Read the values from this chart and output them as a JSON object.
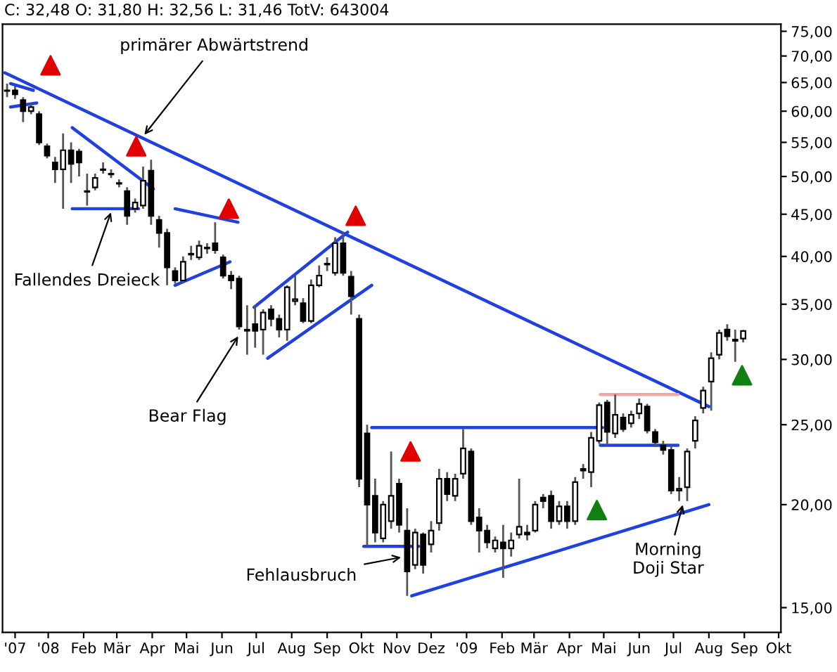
{
  "chart_data": {
    "type": "candlestick",
    "title": "C: 32,48 O: 31,80 H: 32,56 L: 31,46 TotV: 643004",
    "log": true,
    "x": [
      "2007-11-26",
      "2007-12-03",
      "2007-12-10",
      "2007-12-17",
      "2007-12-24",
      "2007-12-31",
      "2008-01-07",
      "2008-01-14",
      "2008-01-21",
      "2008-01-28",
      "2008-02-04",
      "2008-02-11",
      "2008-02-18",
      "2008-02-25",
      "2008-03-03",
      "2008-03-10",
      "2008-03-17",
      "2008-03-24",
      "2008-03-31",
      "2008-04-07",
      "2008-04-14",
      "2008-04-21",
      "2008-04-28",
      "2008-05-05",
      "2008-05-12",
      "2008-05-19",
      "2008-05-26",
      "2008-06-02",
      "2008-06-09",
      "2008-06-16",
      "2008-06-23",
      "2008-06-30",
      "2008-07-07",
      "2008-07-14",
      "2008-07-21",
      "2008-07-28",
      "2008-08-04",
      "2008-08-11",
      "2008-08-18",
      "2008-08-25",
      "2008-09-01",
      "2008-09-08",
      "2008-09-15",
      "2008-09-22",
      "2008-09-29",
      "2008-10-06",
      "2008-10-13",
      "2008-10-20",
      "2008-10-27",
      "2008-11-03",
      "2008-11-10",
      "2008-11-17",
      "2008-11-24",
      "2008-12-01",
      "2008-12-08",
      "2008-12-15",
      "2008-12-22",
      "2008-12-29",
      "2009-01-05",
      "2009-01-12",
      "2009-01-19",
      "2009-01-26",
      "2009-02-02",
      "2009-02-09",
      "2009-02-16",
      "2009-02-23",
      "2009-03-02",
      "2009-03-09",
      "2009-03-16",
      "2009-03-23",
      "2009-03-30",
      "2009-04-06",
      "2009-04-13",
      "2009-04-20",
      "2009-04-27",
      "2009-05-04",
      "2009-05-11",
      "2009-05-18",
      "2009-05-25",
      "2009-06-01",
      "2009-06-08",
      "2009-06-15",
      "2009-06-22",
      "2009-06-29",
      "2009-07-06",
      "2009-07-13",
      "2009-07-20",
      "2009-07-27",
      "2009-08-03",
      "2009-08-10",
      "2009-08-17",
      "2009-08-24",
      "2009-08-31"
    ],
    "ohlc": [
      [
        63.6,
        64.8,
        62.4,
        63.5
      ],
      [
        63.6,
        64.3,
        62.1,
        62.9
      ],
      [
        61.9,
        62.4,
        58.2,
        60.0
      ],
      [
        60.0,
        61.2,
        59.5,
        60.7
      ],
      [
        59.5,
        60.0,
        54.6,
        55.0
      ],
      [
        54.4,
        54.8,
        52.6,
        53.0
      ],
      [
        52.0,
        52.8,
        49.1,
        51.0
      ],
      [
        51.0,
        56.4,
        45.7,
        53.8
      ],
      [
        53.8,
        55.0,
        49.1,
        51.8
      ],
      [
        53.6,
        54.0,
        50.0,
        52.0
      ],
      [
        48.0,
        50.4,
        46.1,
        47.9
      ],
      [
        48.5,
        50.4,
        48.1,
        49.8
      ],
      [
        51.0,
        52.0,
        50.4,
        50.9
      ],
      [
        50.4,
        51.0,
        49.8,
        50.3
      ],
      [
        49.1,
        49.6,
        48.5,
        49.0
      ],
      [
        48.0,
        48.5,
        43.7,
        44.8
      ],
      [
        45.7,
        47.0,
        45.2,
        46.5
      ],
      [
        46.1,
        51.4,
        45.7,
        49.4
      ],
      [
        50.8,
        52.4,
        43.7,
        44.8
      ],
      [
        44.3,
        44.8,
        41.0,
        42.7
      ],
      [
        42.7,
        43.2,
        36.9,
        38.8
      ],
      [
        38.4,
        38.8,
        37.1,
        37.4
      ],
      [
        37.4,
        40.0,
        37.1,
        39.4
      ],
      [
        40.3,
        41.2,
        39.6,
        40.2
      ],
      [
        39.9,
        41.8,
        39.6,
        41.2
      ],
      [
        41.0,
        41.5,
        40.3,
        40.9
      ],
      [
        41.5,
        44.0,
        40.3,
        40.7
      ],
      [
        39.9,
        40.2,
        37.6,
        37.9
      ],
      [
        37.9,
        38.4,
        36.5,
        37.4
      ],
      [
        37.6,
        37.9,
        32.6,
        32.9
      ],
      [
        32.6,
        34.9,
        30.4,
        32.5
      ],
      [
        33.1,
        34.9,
        31.0,
        32.5
      ],
      [
        32.6,
        34.5,
        30.4,
        34.2
      ],
      [
        34.5,
        34.9,
        32.9,
        33.6
      ],
      [
        33.6,
        34.0,
        31.9,
        32.6
      ],
      [
        32.6,
        36.9,
        31.6,
        36.7
      ],
      [
        35.3,
        37.9,
        34.9,
        35.5
      ],
      [
        35.1,
        35.6,
        33.2,
        33.4
      ],
      [
        33.4,
        37.5,
        33.2,
        36.9
      ],
      [
        36.9,
        39.0,
        36.7,
        37.9
      ],
      [
        39.1,
        39.9,
        38.4,
        39.2
      ],
      [
        38.2,
        42.2,
        37.9,
        41.5
      ],
      [
        41.5,
        42.8,
        37.9,
        38.2
      ],
      [
        37.8,
        38.4,
        34.0,
        35.8
      ],
      [
        33.6,
        34.0,
        21.0,
        21.5
      ],
      [
        24.4,
        25.0,
        17.8,
        20.0
      ],
      [
        20.5,
        21.5,
        18.0,
        18.5
      ],
      [
        18.2,
        20.2,
        18.0,
        20.0
      ],
      [
        19.1,
        23.2,
        18.7,
        20.5
      ],
      [
        21.2,
        21.5,
        18.5,
        18.9
      ],
      [
        18.6,
        19.8,
        15.5,
        16.6
      ],
      [
        16.9,
        18.7,
        16.7,
        18.5
      ],
      [
        18.4,
        18.5,
        16.5,
        16.9
      ],
      [
        17.9,
        19.1,
        17.5,
        18.6
      ],
      [
        19.0,
        22.1,
        18.6,
        21.5
      ],
      [
        21.5,
        21.9,
        20.2,
        20.6
      ],
      [
        20.5,
        21.8,
        20.2,
        21.5
      ],
      [
        21.8,
        24.7,
        21.5,
        23.4
      ],
      [
        23.2,
        23.4,
        18.9,
        19.1
      ],
      [
        19.3,
        19.8,
        17.5,
        18.6
      ],
      [
        18.6,
        18.9,
        17.7,
        18.0
      ],
      [
        17.7,
        18.3,
        17.5,
        18.1
      ],
      [
        18.0,
        18.9,
        16.3,
        17.7
      ],
      [
        17.7,
        18.5,
        17.3,
        18.1
      ],
      [
        18.4,
        21.5,
        18.2,
        18.8
      ],
      [
        18.5,
        18.9,
        18.1,
        18.4
      ],
      [
        18.6,
        20.2,
        18.5,
        20.0
      ],
      [
        20.4,
        20.6,
        19.8,
        20.2
      ],
      [
        20.5,
        20.8,
        18.7,
        19.1
      ],
      [
        19.1,
        20.2,
        18.9,
        19.9
      ],
      [
        19.9,
        20.2,
        18.7,
        19.1
      ],
      [
        19.1,
        21.6,
        18.9,
        21.3
      ],
      [
        22.0,
        22.4,
        21.5,
        22.1
      ],
      [
        21.9,
        24.5,
        21.0,
        24.1
      ],
      [
        23.9,
        26.6,
        23.7,
        26.4
      ],
      [
        26.6,
        26.8,
        23.6,
        24.5
      ],
      [
        24.4,
        27.2,
        24.1,
        25.7
      ],
      [
        25.5,
        25.8,
        24.5,
        24.7
      ],
      [
        25.1,
        26.0,
        24.8,
        25.7
      ],
      [
        25.8,
        26.9,
        25.4,
        26.5
      ],
      [
        26.3,
        26.5,
        24.4,
        24.6
      ],
      [
        24.5,
        24.7,
        23.5,
        23.8
      ],
      [
        23.6,
        23.9,
        23.0,
        23.3
      ],
      [
        23.3,
        23.6,
        20.6,
        20.8
      ],
      [
        20.8,
        21.6,
        20.2,
        20.9
      ],
      [
        21.0,
        23.4,
        20.2,
        23.2
      ],
      [
        23.9,
        25.6,
        23.4,
        25.3
      ],
      [
        26.2,
        27.8,
        25.8,
        27.5
      ],
      [
        28.2,
        30.6,
        26.0,
        30.1
      ],
      [
        30.4,
        32.6,
        30.0,
        32.3
      ],
      [
        32.6,
        33.1,
        31.6,
        32.0
      ],
      [
        31.6,
        32.6,
        29.8,
        31.7
      ],
      [
        31.8,
        32.56,
        31.46,
        32.48
      ]
    ],
    "series": [
      {
        "type": "line",
        "color": "#2040e0",
        "x": [
          "2007-11-24",
          "2009-08-01"
        ],
        "values": [
          66.8,
          26.3
        ]
      },
      {
        "type": "line",
        "color": "#2040e0",
        "x": [
          "2007-11-29",
          "2007-12-19"
        ],
        "values": [
          64.8,
          63.6
        ]
      },
      {
        "type": "line",
        "color": "#2040e0",
        "x": [
          "2007-11-29",
          "2007-12-22"
        ],
        "values": [
          60.7,
          61.4
        ]
      },
      {
        "type": "line",
        "color": "#2040e0",
        "x": [
          "2008-01-22",
          "2008-04-02"
        ],
        "values": [
          57.3,
          48.3
        ]
      },
      {
        "type": "line",
        "color": "#2040e0",
        "x": [
          "2008-01-22",
          "2008-03-20"
        ],
        "values": [
          45.7,
          45.7
        ]
      },
      {
        "type": "line",
        "color": "#2040e0",
        "x": [
          "2008-04-21",
          "2008-06-15"
        ],
        "values": [
          45.7,
          44.0
        ]
      },
      {
        "type": "line",
        "color": "#2040e0",
        "x": [
          "2008-04-21",
          "2008-06-08"
        ],
        "values": [
          36.9,
          39.4
        ]
      },
      {
        "type": "line",
        "color": "#2040e0",
        "x": [
          "2008-06-29",
          "2008-09-19"
        ],
        "values": [
          34.7,
          42.8
        ]
      },
      {
        "type": "line",
        "color": "#2040e0",
        "x": [
          "2008-07-11",
          "2008-10-10"
        ],
        "values": [
          30.1,
          36.9
        ]
      },
      {
        "type": "line",
        "color": "#2040e0",
        "x": [
          "2008-10-10",
          "2009-04-30"
        ],
        "values": [
          24.8,
          24.8
        ]
      },
      {
        "type": "line",
        "color": "#2040e0",
        "x": [
          "2008-10-03",
          "2008-11-20"
        ],
        "values": [
          17.8,
          17.8
        ]
      },
      {
        "type": "line",
        "color": "#2040e0",
        "x": [
          "2008-11-14",
          "2009-08-01"
        ],
        "values": [
          15.5,
          20.0
        ]
      },
      {
        "type": "line",
        "color": "#2040e0",
        "x": [
          "2009-04-28",
          "2009-07-05"
        ],
        "values": [
          23.6,
          23.6
        ]
      },
      {
        "type": "line",
        "color": "#f4a4a4",
        "x": [
          "2009-04-28",
          "2009-07-05"
        ],
        "values": [
          27.2,
          27.2
        ]
      },
      {
        "type": "scatter",
        "color": "#e00000",
        "marker": "triangle",
        "x": [
          "2008-01-03",
          "2008-03-18",
          "2008-06-07",
          "2008-09-26",
          "2008-11-13"
        ],
        "values": [
          68.2,
          54.4,
          45.7,
          44.8,
          23.2
        ]
      },
      {
        "type": "scatter",
        "color": "#108010",
        "marker": "triangle",
        "x": [
          "2009-04-25",
          "2009-08-30"
        ],
        "values": [
          19.7,
          28.7
        ]
      }
    ],
    "annotations": [
      {
        "text": "primärer Abwärtstrend",
        "x": "2008-03-23",
        "y": 55.7
      },
      {
        "text": "Fallendes Dreieck",
        "x": "2008-02-26",
        "y": 45.7
      },
      {
        "text": "Bear Flag",
        "x": "2008-06-17",
        "y": 32.3
      },
      {
        "text": "Fehlausbruch",
        "x": "2008-11-08",
        "y": 17.3
      },
      {
        "text": "Morning\nDoji Star",
        "x": "2009-07-10",
        "y": 20.2
      }
    ],
    "xlim": [
      "2007-11-22",
      "2009-10-03"
    ],
    "xticks": [
      {
        "value": "2007-12-03",
        "label": "'07"
      },
      {
        "value": "2008-01-01",
        "label": "'08"
      },
      {
        "value": "2008-02-01",
        "label": "Feb"
      },
      {
        "value": "2008-03-01",
        "label": "Mär"
      },
      {
        "value": "2008-04-01",
        "label": "Apr"
      },
      {
        "value": "2008-05-01",
        "label": "Mai"
      },
      {
        "value": "2008-06-01",
        "label": "Jun"
      },
      {
        "value": "2008-07-01",
        "label": "Jul"
      },
      {
        "value": "2008-08-01",
        "label": "Aug"
      },
      {
        "value": "2008-09-01",
        "label": "Sep"
      },
      {
        "value": "2008-10-01",
        "label": "Okt"
      },
      {
        "value": "2008-11-01",
        "label": "Nov"
      },
      {
        "value": "2008-12-01",
        "label": "Dez"
      },
      {
        "value": "2009-01-01",
        "label": "'09"
      },
      {
        "value": "2009-02-01",
        "label": "Feb"
      },
      {
        "value": "2009-03-01",
        "label": "Mär"
      },
      {
        "value": "2009-04-01",
        "label": "Apr"
      },
      {
        "value": "2009-05-01",
        "label": "Mai"
      },
      {
        "value": "2009-06-01",
        "label": "Jun"
      },
      {
        "value": "2009-07-01",
        "label": "Jul"
      },
      {
        "value": "2009-08-01",
        "label": "Aug"
      },
      {
        "value": "2009-09-01",
        "label": "Sep"
      },
      {
        "value": "2009-10-01",
        "label": "Okt"
      }
    ],
    "ylim": [
      14.0,
      76.5
    ],
    "yticks": [
      {
        "value": 15,
        "label": "15,00"
      },
      {
        "value": 20,
        "label": "20,00"
      },
      {
        "value": 25,
        "label": "25,00"
      },
      {
        "value": 30,
        "label": "30,00"
      },
      {
        "value": 35,
        "label": "35,00"
      },
      {
        "value": 40,
        "label": "40,00"
      },
      {
        "value": 45,
        "label": "45,00"
      },
      {
        "value": 50,
        "label": "50,00"
      },
      {
        "value": 55,
        "label": "55,00"
      },
      {
        "value": 60,
        "label": "60,00"
      },
      {
        "value": 65,
        "label": "65,00"
      },
      {
        "value": 70,
        "label": "70,00"
      },
      {
        "value": 75,
        "label": "75,00"
      }
    ]
  }
}
